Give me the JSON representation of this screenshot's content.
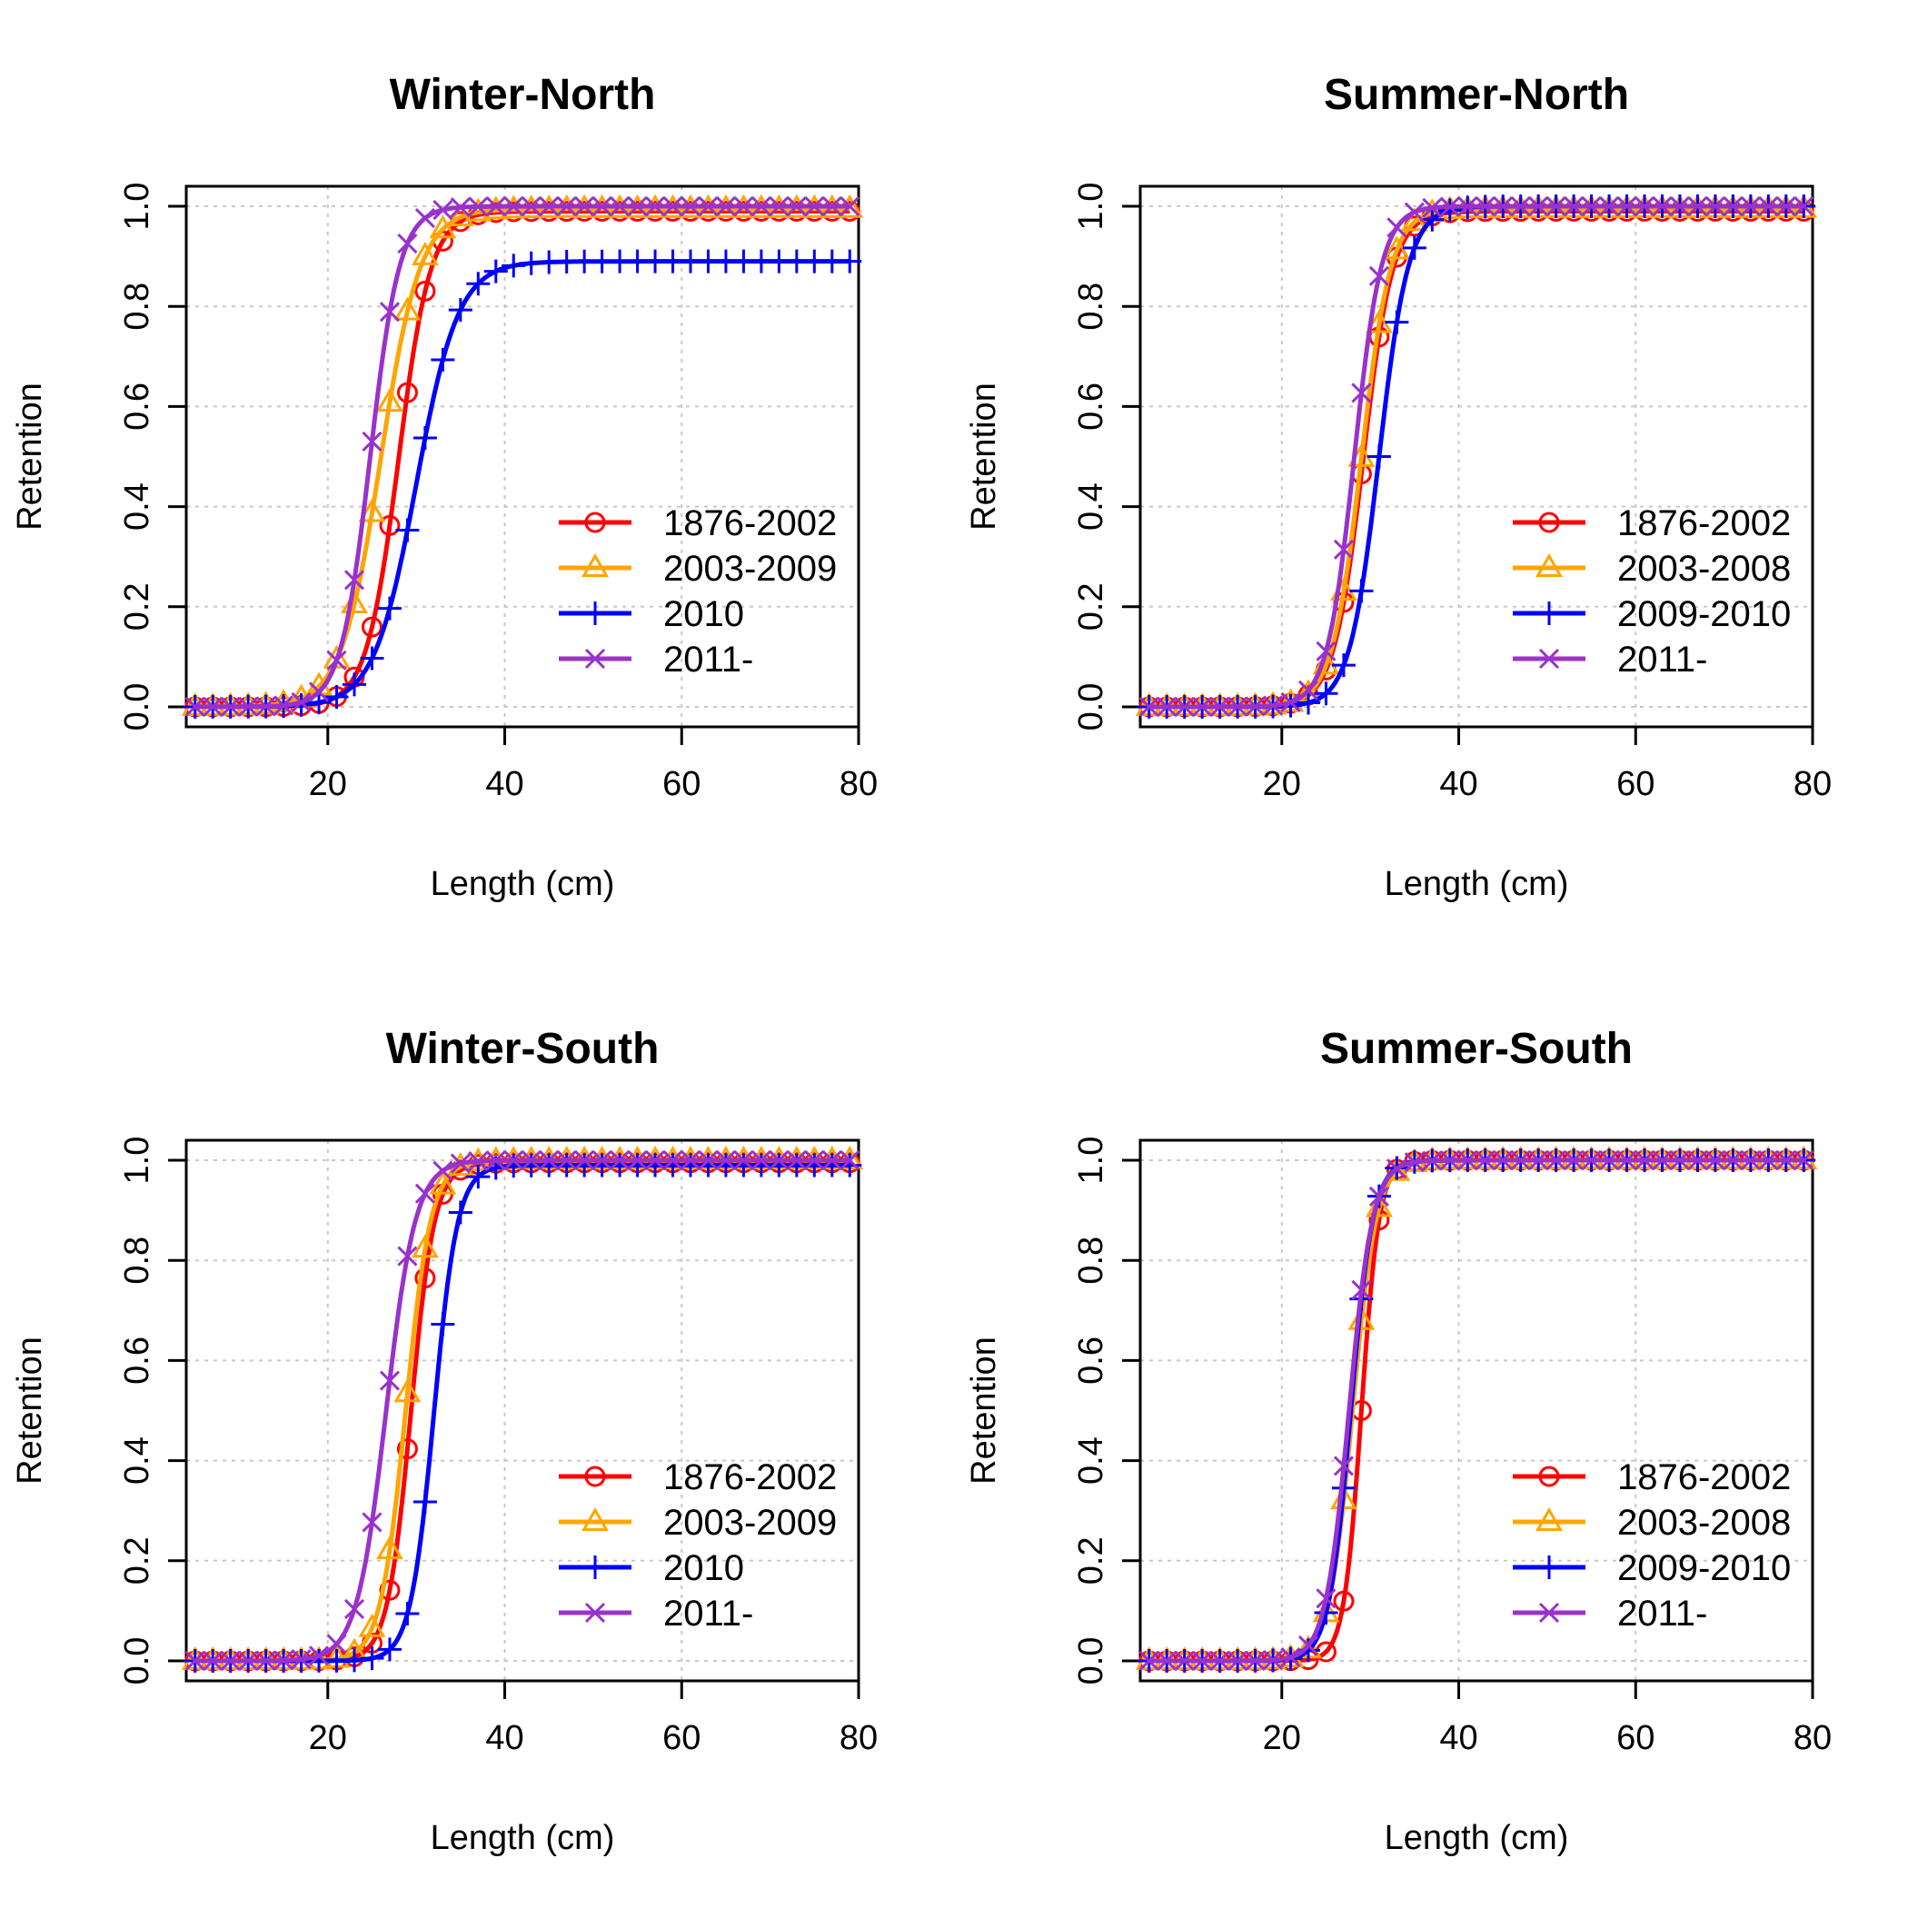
{
  "chart_data": [
    {
      "type": "line",
      "title": "Winter-North",
      "xlabel": "Length (cm)",
      "ylabel": "Retention",
      "xlim": [
        4,
        80
      ],
      "ylim": [
        0,
        1
      ],
      "x_ticks": [
        20,
        40,
        60,
        80
      ],
      "y_ticks": [
        0.0,
        0.2,
        0.4,
        0.6,
        0.8,
        1.0
      ],
      "y_tick_labels": [
        "0.0",
        "0.2",
        "0.4",
        "0.6",
        "0.8",
        "1.0"
      ],
      "grid": true,
      "legend_position": "bottom-right",
      "series": [
        {
          "name": "1876-2002",
          "color": "#ff0000",
          "marker": "circle",
          "inflection": 28.0,
          "slope": 0.55,
          "asymptote": 0.99
        },
        {
          "name": "2003-2009",
          "color": "#ffa500",
          "marker": "triangle",
          "inflection": 26.0,
          "slope": 0.45,
          "asymptote": 0.995
        },
        {
          "name": "2010",
          "color": "#0000ff",
          "marker": "plus",
          "inflection": 30.0,
          "slope": 0.42,
          "asymptote": 0.89
        },
        {
          "name": "2011-",
          "color": "#9932cc",
          "marker": "cross",
          "inflection": 24.8,
          "slope": 0.6,
          "asymptote": 1.0
        }
      ]
    },
    {
      "type": "line",
      "title": "Summer-North",
      "xlabel": "Length (cm)",
      "ylabel": "Retention",
      "xlim": [
        4,
        80
      ],
      "ylim": [
        0,
        1
      ],
      "x_ticks": [
        20,
        40,
        60,
        80
      ],
      "y_ticks": [
        0.0,
        0.2,
        0.4,
        0.6,
        0.8,
        1.0
      ],
      "y_tick_labels": [
        "0.0",
        "0.2",
        "0.4",
        "0.6",
        "0.8",
        "1.0"
      ],
      "grid": true,
      "legend_position": "bottom-right",
      "series": [
        {
          "name": "1876-2002",
          "color": "#ff0000",
          "marker": "circle",
          "inflection": 29.2,
          "slope": 0.6,
          "asymptote": 0.99
        },
        {
          "name": "2003-2008",
          "color": "#ffa500",
          "marker": "triangle",
          "inflection": 29.0,
          "slope": 0.6,
          "asymptote": 0.995
        },
        {
          "name": "2009-2010",
          "color": "#0000ff",
          "marker": "plus",
          "inflection": 31.0,
          "slope": 0.6,
          "asymptote": 1.0
        },
        {
          "name": "2011-",
          "color": "#9932cc",
          "marker": "cross",
          "inflection": 28.2,
          "slope": 0.65,
          "asymptote": 1.0
        }
      ]
    },
    {
      "type": "line",
      "title": "Winter-South",
      "xlabel": "Length (cm)",
      "ylabel": "Retention",
      "xlim": [
        4,
        80
      ],
      "ylim": [
        0,
        1
      ],
      "x_ticks": [
        20,
        40,
        60,
        80
      ],
      "y_ticks": [
        0.0,
        0.2,
        0.4,
        0.6,
        0.8,
        1.0
      ],
      "y_tick_labels": [
        "0.0",
        "0.2",
        "0.4",
        "0.6",
        "0.8",
        "1.0"
      ],
      "grid": true,
      "legend_position": "bottom-right",
      "series": [
        {
          "name": "1876-2002",
          "color": "#ff0000",
          "marker": "circle",
          "inflection": 29.4,
          "slope": 0.75,
          "asymptote": 0.995
        },
        {
          "name": "2003-2009",
          "color": "#ffa500",
          "marker": "triangle",
          "inflection": 28.8,
          "slope": 0.7,
          "asymptote": 1.0
        },
        {
          "name": "2010",
          "color": "#0000ff",
          "marker": "plus",
          "inflection": 32.0,
          "slope": 0.75,
          "asymptote": 0.99
        },
        {
          "name": "2011-",
          "color": "#9932cc",
          "marker": "cross",
          "inflection": 26.6,
          "slope": 0.6,
          "asymptote": 1.0
        }
      ]
    },
    {
      "type": "line",
      "title": "Summer-South",
      "xlabel": "Length (cm)",
      "ylabel": "Retention",
      "xlim": [
        4,
        80
      ],
      "ylim": [
        0,
        1
      ],
      "x_ticks": [
        20,
        40,
        60,
        80
      ],
      "y_ticks": [
        0.0,
        0.2,
        0.4,
        0.6,
        0.8,
        1.0
      ],
      "y_tick_labels": [
        "0.0",
        "0.2",
        "0.4",
        "0.6",
        "0.8",
        "1.0"
      ],
      "grid": true,
      "legend_position": "bottom-right",
      "series": [
        {
          "name": "1876-2002",
          "color": "#ff0000",
          "marker": "circle",
          "inflection": 29.0,
          "slope": 1.0,
          "asymptote": 1.0
        },
        {
          "name": "2003-2008",
          "color": "#ffa500",
          "marker": "triangle",
          "inflection": 28.0,
          "slope": 0.75,
          "asymptote": 1.0
        },
        {
          "name": "2009-2010",
          "color": "#0000ff",
          "marker": "plus",
          "inflection": 27.8,
          "slope": 0.8,
          "asymptote": 1.0
        },
        {
          "name": "2011-",
          "color": "#9932cc",
          "marker": "cross",
          "inflection": 27.6,
          "slope": 0.75,
          "asymptote": 1.0
        }
      ]
    }
  ]
}
